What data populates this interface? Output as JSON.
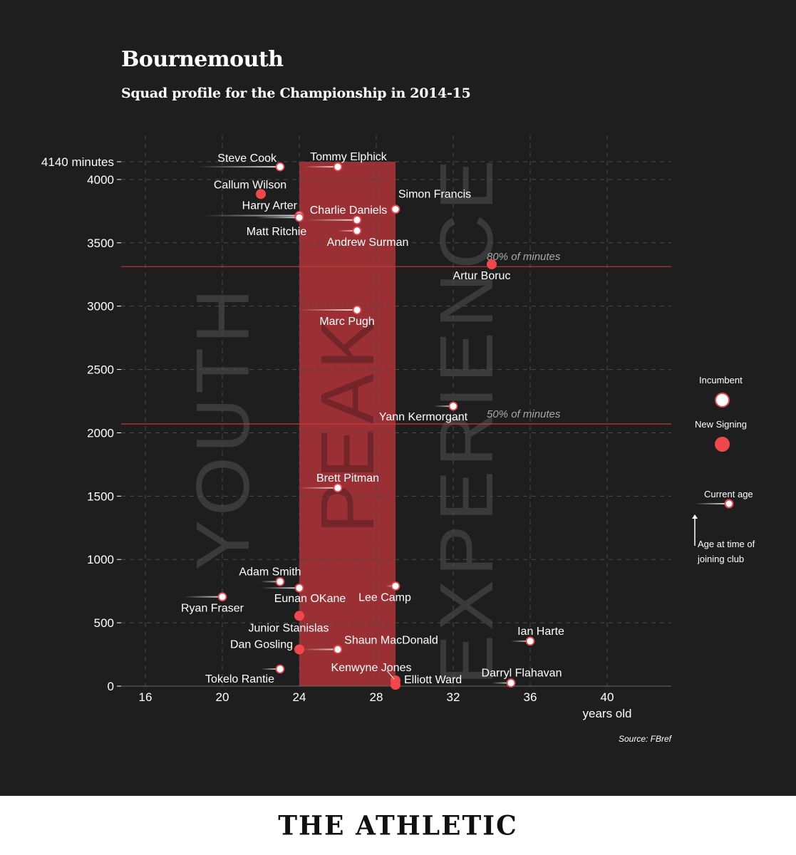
{
  "header": {
    "title": "Bournemouth",
    "subtitle": "Squad profile for the Championship in 2014-15"
  },
  "chart_data": {
    "type": "scatter",
    "title": "Bournemouth",
    "subtitle": "Squad profile for the Championship in 2014-15",
    "xlabel": "years old",
    "ylabel": "minutes",
    "x_ticks": [
      16,
      20,
      24,
      28,
      32,
      36,
      40
    ],
    "y_ticks": [
      0,
      500,
      1000,
      1500,
      2000,
      2500,
      3000,
      3500,
      4000
    ],
    "xlim": [
      14.7,
      43.5
    ],
    "ylim": [
      0,
      4140
    ],
    "max_minutes_label": "4140 minutes",
    "peak_band": {
      "from_age": 24,
      "to_age": 29,
      "max_minutes": 4140
    },
    "zone_labels": [
      "YOUTH",
      "PEAK",
      "EXPERIENCE"
    ],
    "reference_lines": [
      {
        "value": 3312,
        "label": "80% of minutes"
      },
      {
        "value": 2070,
        "label": "50% of minutes"
      }
    ],
    "players": [
      {
        "name": "Steve Cook",
        "age": 23,
        "joined_age": 18.7,
        "minutes": 4100,
        "type": "incumbent"
      },
      {
        "name": "Tommy Elphick",
        "age": 26,
        "joined_age": 24.3,
        "minutes": 4100,
        "type": "incumbent"
      },
      {
        "name": "Callum Wilson",
        "age": 22,
        "joined_age": 22,
        "minutes": 3885,
        "type": "new"
      },
      {
        "name": "Simon Francis",
        "age": 29,
        "joined_age": 29,
        "minutes": 3765,
        "type": "incumbent"
      },
      {
        "name": "Harry Arter",
        "age": 24,
        "joined_age": 19,
        "minutes": 3715,
        "type": "incumbent"
      },
      {
        "name": "Charlie Daniels",
        "age": 27,
        "joined_age": 24.4,
        "minutes": 3680,
        "type": "incumbent"
      },
      {
        "name": "Matt Ritchie",
        "age": 24,
        "joined_age": 21.7,
        "minutes": 3700,
        "type": "incumbent"
      },
      {
        "name": "Andrew Surman",
        "age": 27,
        "joined_age": 26,
        "minutes": 3595,
        "type": "incumbent"
      },
      {
        "name": "Artur Boruc",
        "age": 34,
        "joined_age": 34,
        "minutes": 3330,
        "type": "new"
      },
      {
        "name": "Marc Pugh",
        "age": 27,
        "joined_age": 24,
        "minutes": 2970,
        "type": "incumbent"
      },
      {
        "name": "Yann Kermorgant",
        "age": 32,
        "joined_age": 31,
        "minutes": 2210,
        "type": "incumbent"
      },
      {
        "name": "Brett Pitman",
        "age": 26,
        "joined_age": 24,
        "minutes": 1565,
        "type": "incumbent"
      },
      {
        "name": "Adam Smith",
        "age": 23,
        "joined_age": 22,
        "minutes": 825,
        "type": "incumbent"
      },
      {
        "name": "Lee Camp",
        "age": 29,
        "joined_age": 28.5,
        "minutes": 790,
        "type": "incumbent"
      },
      {
        "name": "Eunan OKane",
        "age": 24,
        "joined_age": 22,
        "minutes": 775,
        "type": "incumbent"
      },
      {
        "name": "Ryan Fraser",
        "age": 20,
        "joined_age": 18,
        "minutes": 705,
        "type": "incumbent"
      },
      {
        "name": "Junior Stanislas",
        "age": 24,
        "joined_age": 24,
        "minutes": 555,
        "type": "new"
      },
      {
        "name": "Ian Harte",
        "age": 36,
        "joined_age": 35,
        "minutes": 355,
        "type": "incumbent"
      },
      {
        "name": "Dan Gosling",
        "age": 24,
        "joined_age": 24,
        "minutes": 290,
        "type": "new"
      },
      {
        "name": "Shaun MacDonald",
        "age": 26,
        "joined_age": 24.2,
        "minutes": 290,
        "type": "incumbent"
      },
      {
        "name": "Tokelo Rantie",
        "age": 23,
        "joined_age": 22,
        "minutes": 135,
        "type": "incumbent"
      },
      {
        "name": "Elliott Ward",
        "age": 29,
        "joined_age": 29,
        "minutes": 45,
        "type": "new"
      },
      {
        "name": "Kenwyne Jones",
        "age": 29,
        "joined_age": 29,
        "minutes": 10,
        "type": "new"
      },
      {
        "name": "Darryl Flahavan",
        "age": 35,
        "joined_age": 34,
        "minutes": 25,
        "type": "incumbent"
      }
    ],
    "colors": {
      "background": "#1e1e1e",
      "peak_band": "#9b3034",
      "new_signing": "#f0474b",
      "incumbent_fill": "#ffffff",
      "incumbent_stroke": "#e8454a",
      "reference_line": "#c0393d",
      "grid": "#4a4a4a",
      "zone_text": "#3a3a3a"
    }
  },
  "legend": {
    "incumbent": "Incumbent",
    "new_signing": "New Signing",
    "current_age": "Current age",
    "age_at_joining_1": "Age at time of",
    "age_at_joining_2": "joining club"
  },
  "source": "Source: FBref",
  "footer": {
    "brand": "THE ATHLETIC"
  }
}
